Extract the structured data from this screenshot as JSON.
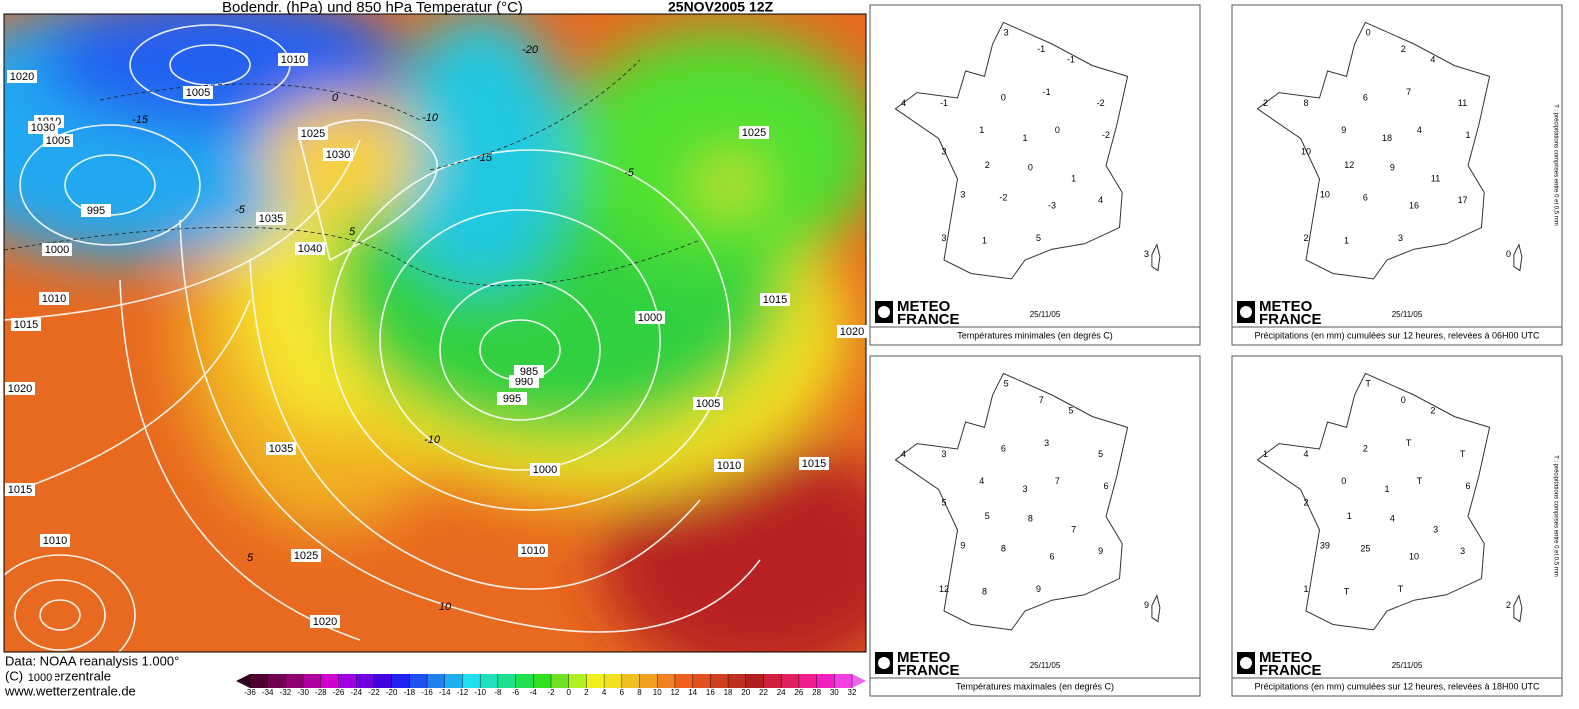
{
  "map": {
    "title": "Bodendr. (hPa) und 850 hPa Temperatur (°C)",
    "datetime": "25NOV2005 12Z",
    "isobar_labels": [
      1020,
      1010,
      1005,
      1010,
      1005,
      995,
      1000,
      1010,
      1015,
      1020,
      1015,
      1010,
      1000,
      1035,
      1040,
      1030,
      1025,
      1030,
      1035,
      1025,
      1020,
      1000,
      995,
      990,
      985,
      1025,
      1015,
      1020,
      1005,
      1010,
      1015,
      1000,
      1010
    ],
    "temperature_labels": [
      -20,
      -15,
      -10,
      -5,
      0,
      5,
      -15,
      -10,
      -5,
      5,
      10
    ],
    "credits": [
      "Data: NOAA reanalysis 1.000°",
      "(C) Wetterzentrale",
      "www.wetterzentrale.de"
    ],
    "colorbar": {
      "ticks": [
        -36,
        -34,
        -32,
        -30,
        -28,
        -26,
        -24,
        -22,
        -20,
        -18,
        -16,
        -14,
        -12,
        -10,
        -8,
        -6,
        -4,
        -2,
        0,
        2,
        4,
        6,
        8,
        10,
        12,
        14,
        16,
        18,
        20,
        22,
        24,
        26,
        28,
        30,
        32
      ],
      "colors": [
        "#500030",
        "#700050",
        "#900070",
        "#b000a0",
        "#d000d0",
        "#a000e0",
        "#7000e0",
        "#4000e0",
        "#2020f0",
        "#2050f0",
        "#2080f0",
        "#20b0f0",
        "#20e0f0",
        "#20e0c0",
        "#20e090",
        "#20e050",
        "#30e020",
        "#70e020",
        "#b0f020",
        "#f0f020",
        "#f0e020",
        "#f0c020",
        "#f0a020",
        "#f08020",
        "#f06020",
        "#e05020",
        "#d04020",
        "#c03020",
        "#b02020",
        "#d02040",
        "#e02060",
        "#f02090",
        "#f020c0",
        "#f040e0"
      ]
    }
  },
  "logo": {
    "line1": "METEO",
    "line2": "FRANCE"
  },
  "panels": [
    {
      "caption": "Températures minimales (en degrés C)",
      "date": "25/11/05",
      "values": [
        3,
        -1,
        -1,
        4,
        -1,
        0,
        -1,
        -2,
        1,
        1,
        0,
        -2,
        3,
        2,
        0,
        1,
        3,
        -2,
        -3,
        4,
        3,
        1,
        5,
        3
      ]
    },
    {
      "caption": "Précipitations (en mm) cumulées sur 12 heures, relevées à 06H00 UTC",
      "date": "25/11/05",
      "side_note": "T : précipitations comprises entre 0 et 0,5 mm",
      "values": [
        0,
        2,
        4,
        2,
        8,
        6,
        7,
        11,
        9,
        18,
        4,
        1,
        10,
        12,
        9,
        11,
        10,
        6,
        16,
        17,
        2,
        1,
        3,
        0
      ]
    },
    {
      "caption": "Températures maximales (en degrés C)",
      "date": "25/11/05",
      "values": [
        5,
        7,
        5,
        4,
        3,
        6,
        3,
        5,
        4,
        3,
        7,
        6,
        5,
        5,
        8,
        7,
        9,
        8,
        6,
        9,
        12,
        8,
        9,
        9
      ]
    },
    {
      "caption": "Précipitations (en mm) cumulées sur 12 heures, relevées à 18H00 UTC",
      "date": "25/11/05",
      "side_note": "T : précipitations comprises entre 0 et 0,5 mm",
      "values": [
        "T",
        0,
        2,
        1,
        4,
        2,
        "T",
        "T",
        0,
        1,
        "T",
        6,
        2,
        1,
        4,
        3,
        39,
        25,
        10,
        3,
        1,
        "T",
        "T",
        2
      ]
    }
  ]
}
